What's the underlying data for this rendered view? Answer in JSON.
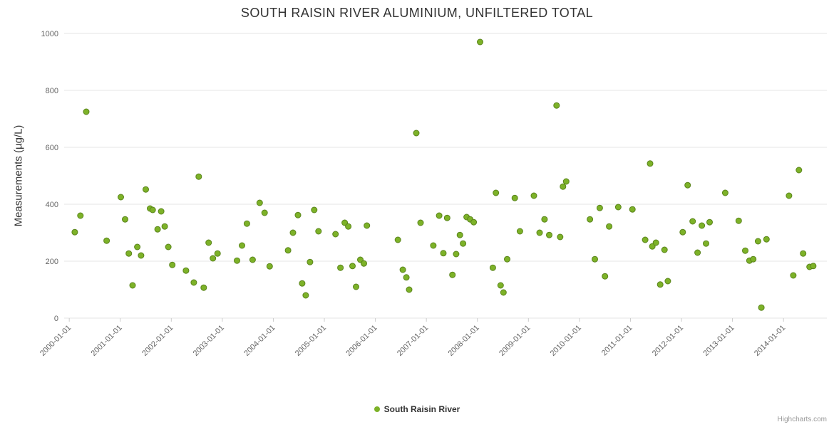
{
  "credits": "Highcharts.com",
  "chart_data": {
    "type": "scatter",
    "title": "SOUTH RAISIN RIVER ALUMINIUM, UNFILTERED TOTAL",
    "ylabel": "Measurements (µg/L)",
    "xlabel": "",
    "ylim": [
      0,
      1000
    ],
    "y_ticks": [
      0,
      200,
      400,
      600,
      800,
      1000
    ],
    "x_range_years": [
      1999.9,
      2014.85
    ],
    "grid": true,
    "legend_position": "bottom-center",
    "x_ticks": [
      {
        "label": "2000-01-01",
        "year": 2000
      },
      {
        "label": "2001-01-01",
        "year": 2001
      },
      {
        "label": "2002-01-01",
        "year": 2002
      },
      {
        "label": "2003-01-01",
        "year": 2003
      },
      {
        "label": "2004-01-01",
        "year": 2004
      },
      {
        "label": "2005-01-01",
        "year": 2005
      },
      {
        "label": "2006-01-01",
        "year": 2006
      },
      {
        "label": "2007-01-01",
        "year": 2007
      },
      {
        "label": "2008-01-01",
        "year": 2008
      },
      {
        "label": "2009-01-01",
        "year": 2009
      },
      {
        "label": "2010-01-01",
        "year": 2010
      },
      {
        "label": "2011-01-01",
        "year": 2011
      },
      {
        "label": "2012-01-01",
        "year": 2012
      },
      {
        "label": "2013-01-01",
        "year": 2013
      },
      {
        "label": "2014-01-01",
        "year": 2014
      }
    ],
    "series": [
      {
        "name": "South Raisin River",
        "color": "#7db228",
        "border": "#5a841c",
        "marker": "circle",
        "points": [
          [
            "2000-02-10",
            302
          ],
          [
            "2000-03-20",
            360
          ],
          [
            "2000-05-01",
            725
          ],
          [
            "2000-09-25",
            272
          ],
          [
            "2001-01-05",
            425
          ],
          [
            "2001-02-05",
            347
          ],
          [
            "2001-03-01",
            227
          ],
          [
            "2001-03-28",
            115
          ],
          [
            "2001-05-01",
            250
          ],
          [
            "2001-05-28",
            220
          ],
          [
            "2001-07-01",
            452
          ],
          [
            "2001-08-01",
            385
          ],
          [
            "2001-08-20",
            380
          ],
          [
            "2001-09-25",
            312
          ],
          [
            "2001-10-20",
            375
          ],
          [
            "2001-11-15",
            322
          ],
          [
            "2001-12-10",
            250
          ],
          [
            "2002-01-08",
            187
          ],
          [
            "2002-04-15",
            167
          ],
          [
            "2002-06-10",
            125
          ],
          [
            "2002-07-15",
            497
          ],
          [
            "2002-08-20",
            107
          ],
          [
            "2002-09-25",
            265
          ],
          [
            "2002-10-25",
            210
          ],
          [
            "2002-11-28",
            227
          ],
          [
            "2003-04-15",
            202
          ],
          [
            "2003-05-20",
            255
          ],
          [
            "2003-06-25",
            332
          ],
          [
            "2003-08-05",
            205
          ],
          [
            "2003-09-25",
            405
          ],
          [
            "2003-10-30",
            370
          ],
          [
            "2003-12-05",
            182
          ],
          [
            "2004-04-15",
            238
          ],
          [
            "2004-05-20",
            300
          ],
          [
            "2004-06-25",
            362
          ],
          [
            "2004-07-25",
            122
          ],
          [
            "2004-08-20",
            80
          ],
          [
            "2004-09-20",
            197
          ],
          [
            "2004-10-20",
            380
          ],
          [
            "2004-11-20",
            305
          ],
          [
            "2005-03-20",
            295
          ],
          [
            "2005-04-25",
            177
          ],
          [
            "2005-05-25",
            335
          ],
          [
            "2005-06-20",
            322
          ],
          [
            "2005-07-20",
            183
          ],
          [
            "2005-08-15",
            110
          ],
          [
            "2005-09-15",
            205
          ],
          [
            "2005-10-10",
            192
          ],
          [
            "2005-11-01",
            325
          ],
          [
            "2006-06-10",
            275
          ],
          [
            "2006-07-15",
            170
          ],
          [
            "2006-08-10",
            143
          ],
          [
            "2006-08-30",
            100
          ],
          [
            "2006-10-20",
            650
          ],
          [
            "2006-11-20",
            335
          ],
          [
            "2007-02-20",
            255
          ],
          [
            "2007-04-01",
            360
          ],
          [
            "2007-05-01",
            228
          ],
          [
            "2007-05-28",
            352
          ],
          [
            "2007-07-05",
            152
          ],
          [
            "2007-08-01",
            225
          ],
          [
            "2007-08-28",
            292
          ],
          [
            "2007-09-20",
            262
          ],
          [
            "2007-10-15",
            355
          ],
          [
            "2007-11-10",
            347
          ],
          [
            "2007-12-05",
            337
          ],
          [
            "2008-01-20",
            970
          ],
          [
            "2008-04-20",
            177
          ],
          [
            "2008-05-12",
            440
          ],
          [
            "2008-06-15",
            115
          ],
          [
            "2008-07-05",
            90
          ],
          [
            "2008-08-01",
            207
          ],
          [
            "2008-09-25",
            422
          ],
          [
            "2008-11-01",
            305
          ],
          [
            "2009-02-10",
            430
          ],
          [
            "2009-03-20",
            300
          ],
          [
            "2009-04-25",
            347
          ],
          [
            "2009-05-28",
            292
          ],
          [
            "2009-07-20",
            747
          ],
          [
            "2009-08-15",
            285
          ],
          [
            "2009-09-05",
            462
          ],
          [
            "2009-09-28",
            480
          ],
          [
            "2010-03-15",
            347
          ],
          [
            "2010-04-20",
            207
          ],
          [
            "2010-05-25",
            387
          ],
          [
            "2010-07-01",
            147
          ],
          [
            "2010-08-01",
            322
          ],
          [
            "2010-10-05",
            390
          ],
          [
            "2011-01-15",
            382
          ],
          [
            "2011-04-15",
            275
          ],
          [
            "2011-05-20",
            543
          ],
          [
            "2011-06-05",
            252
          ],
          [
            "2011-07-01",
            265
          ],
          [
            "2011-08-01",
            118
          ],
          [
            "2011-09-01",
            240
          ],
          [
            "2011-09-25",
            130
          ],
          [
            "2012-01-10",
            302
          ],
          [
            "2012-02-15",
            467
          ],
          [
            "2012-03-20",
            340
          ],
          [
            "2012-04-25",
            230
          ],
          [
            "2012-05-25",
            325
          ],
          [
            "2012-06-25",
            262
          ],
          [
            "2012-07-20",
            337
          ],
          [
            "2012-11-10",
            440
          ],
          [
            "2013-02-15",
            342
          ],
          [
            "2013-04-01",
            237
          ],
          [
            "2013-05-01",
            202
          ],
          [
            "2013-05-28",
            207
          ],
          [
            "2013-07-01",
            270
          ],
          [
            "2013-07-25",
            37
          ],
          [
            "2013-09-01",
            277
          ],
          [
            "2014-02-10",
            430
          ],
          [
            "2014-03-10",
            150
          ],
          [
            "2014-04-20",
            520
          ],
          [
            "2014-05-20",
            227
          ],
          [
            "2014-07-05",
            180
          ],
          [
            "2014-08-01",
            183
          ]
        ]
      }
    ]
  }
}
